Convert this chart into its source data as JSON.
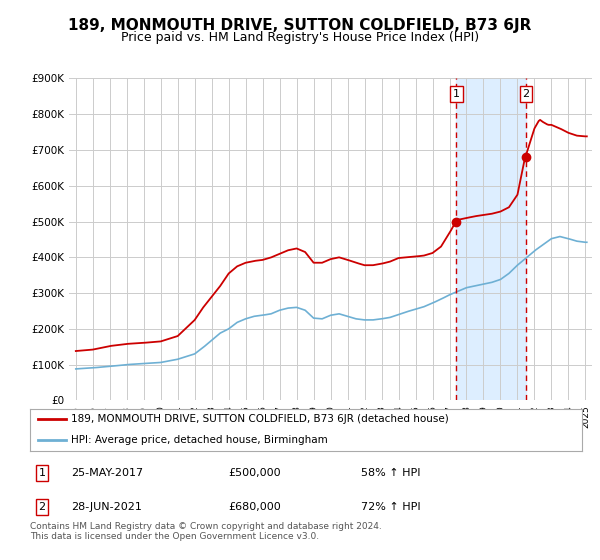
{
  "title": "189, MONMOUTH DRIVE, SUTTON COLDFIELD, B73 6JR",
  "subtitle": "Price paid vs. HM Land Registry's House Price Index (HPI)",
  "ylim": [
    0,
    900000
  ],
  "yticks": [
    0,
    100000,
    200000,
    300000,
    400000,
    500000,
    600000,
    700000,
    800000,
    900000
  ],
  "ytick_labels": [
    "£0",
    "£100K",
    "£200K",
    "£300K",
    "£400K",
    "£500K",
    "£600K",
    "£700K",
    "£800K",
    "£900K"
  ],
  "sale1_date": 2017.4,
  "sale1_price": 500000,
  "sale2_date": 2021.5,
  "sale2_price": 680000,
  "red_line_color": "#cc0000",
  "blue_line_color": "#6eb0d4",
  "shaded_region_color": "#ddeeff",
  "vline_color": "#cc0000",
  "grid_color": "#cccccc",
  "background_color": "#ffffff",
  "title_fontsize": 11,
  "subtitle_fontsize": 9,
  "legend1_label": "189, MONMOUTH DRIVE, SUTTON COLDFIELD, B73 6JR (detached house)",
  "legend2_label": "HPI: Average price, detached house, Birmingham",
  "footnote": "Contains HM Land Registry data © Crown copyright and database right 2024.\nThis data is licensed under the Open Government Licence v3.0.",
  "table_row1": [
    "1",
    "25-MAY-2017",
    "£500,000",
    "58% ↑ HPI"
  ],
  "table_row2": [
    "2",
    "28-JUN-2021",
    "£680,000",
    "72% ↑ HPI"
  ]
}
